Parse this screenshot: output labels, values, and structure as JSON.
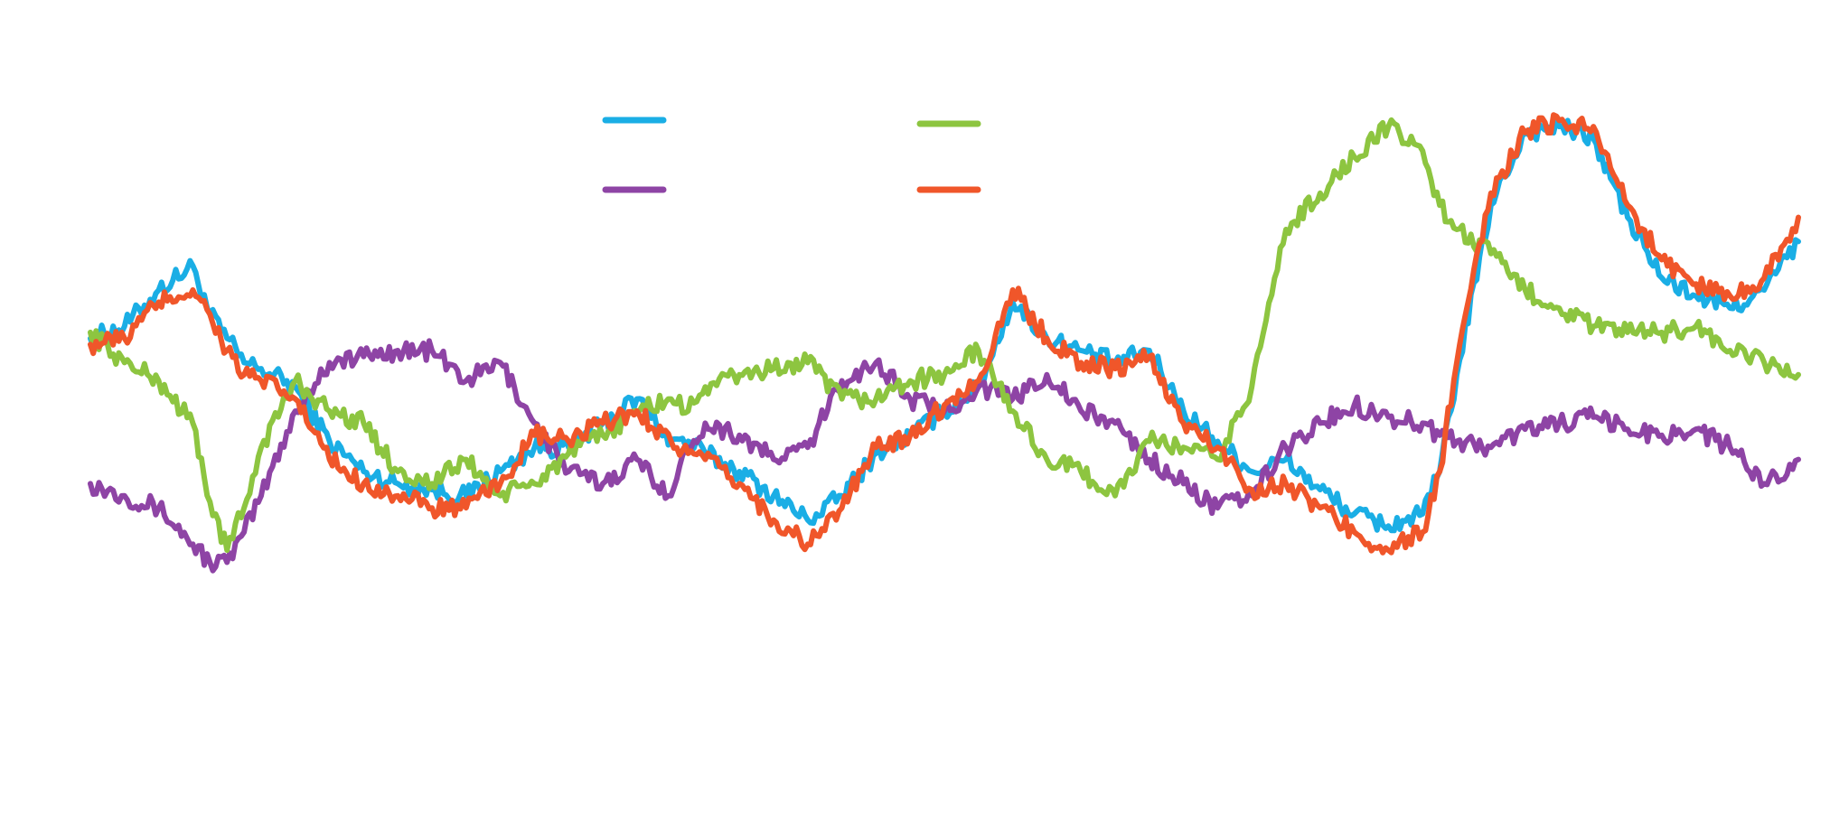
{
  "chart_data": {
    "type": "line",
    "title": "",
    "xlabel": "",
    "ylabel": "",
    "grid": false,
    "legend": "top-center",
    "x_range": [
      0,
      100
    ],
    "y_range": [
      0,
      100
    ],
    "x": [
      0,
      2,
      4,
      6,
      7,
      8,
      9,
      10,
      12,
      14,
      16,
      18,
      20,
      22,
      24,
      26,
      28,
      30,
      32,
      34,
      35,
      36,
      38,
      40,
      42,
      44,
      46,
      48,
      50,
      52,
      54,
      56,
      58,
      60,
      62,
      64,
      66,
      68,
      70,
      72,
      74,
      76,
      78,
      79,
      80,
      82,
      84,
      86,
      88,
      90,
      92,
      94,
      96,
      98,
      100
    ],
    "series": [
      {
        "name": "",
        "color": "#1aaee5",
        "values": [
          62,
          64,
          70,
          74,
          66,
          62,
          58,
          57,
          54,
          45,
          40,
          38,
          37,
          36,
          40,
          44,
          44,
          48,
          52,
          45,
          45,
          43,
          40,
          36,
          32,
          36,
          43,
          46,
          50,
          54,
          68,
          62,
          60,
          58,
          60,
          50,
          45,
          40,
          42,
          37,
          33,
          31,
          33,
          40,
          56,
          84,
          96,
          97,
          95,
          82,
          72,
          69,
          67,
          70,
          78
        ]
      },
      {
        "name": "",
        "color": "#8e44a5",
        "values": [
          38,
          36,
          34,
          28,
          25,
          25,
          30,
          36,
          50,
          58,
          59,
          60,
          60,
          55,
          58,
          48,
          40,
          38,
          42,
          36,
          44,
          48,
          46,
          42,
          44,
          55,
          58,
          52,
          50,
          54,
          52,
          56,
          50,
          48,
          42,
          38,
          34,
          36,
          44,
          48,
          51,
          49,
          48,
          46,
          45,
          44,
          47,
          48,
          49,
          47,
          46,
          47,
          44,
          38,
          42
        ]
      },
      {
        "name": "",
        "color": "#8dc540",
        "values": [
          63,
          58,
          55,
          48,
          35,
          27,
          34,
          44,
          55,
          50,
          48,
          40,
          38,
          42,
          36,
          38,
          43,
          46,
          50,
          52,
          50,
          54,
          56,
          57,
          58,
          52,
          52,
          55,
          56,
          60,
          50,
          42,
          40,
          36,
          45,
          44,
          42,
          54,
          80,
          86,
          92,
          97,
          93,
          84,
          80,
          76,
          70,
          67,
          64,
          63,
          63,
          64,
          60,
          58,
          56
        ]
      },
      {
        "name": "",
        "color": "#f0562a",
        "values": [
          61,
          62,
          68,
          70,
          66,
          60,
          56,
          55,
          52,
          42,
          38,
          36,
          34,
          34,
          38,
          46,
          45,
          48,
          50,
          45,
          43,
          42,
          38,
          32,
          28,
          34,
          44,
          46,
          51,
          55,
          70,
          62,
          58,
          57,
          59,
          48,
          44,
          37,
          38,
          34,
          30,
          27,
          30,
          40,
          58,
          86,
          96,
          98,
          97,
          84,
          75,
          71,
          69,
          72,
          82
        ]
      }
    ]
  }
}
